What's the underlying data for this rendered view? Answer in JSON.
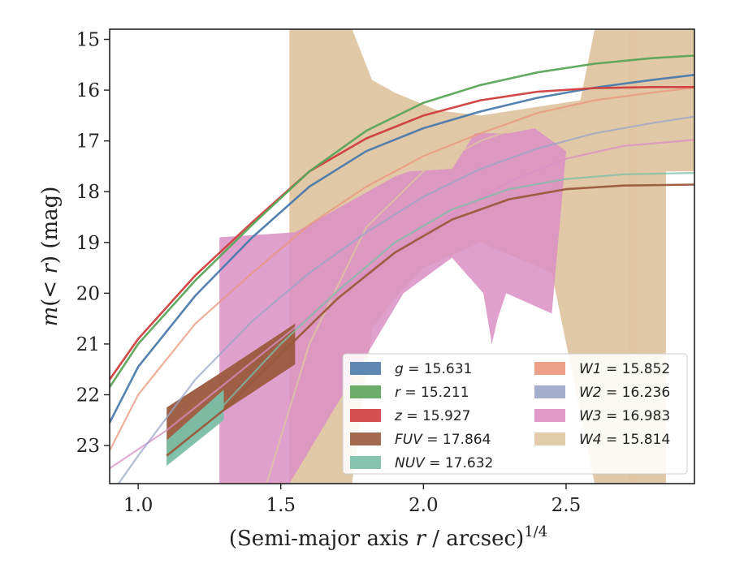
{
  "chart_data": {
    "type": "line",
    "xlabel": "(Semi-major axis r / arcsec)^1/4",
    "ylabel": "m(< r) (mag)",
    "xlim": [
      0.9,
      2.95
    ],
    "ylim": [
      23.75,
      14.8
    ],
    "y_inverted": true,
    "xticks": [
      1.0,
      1.5,
      2.0,
      2.5
    ],
    "xtick_labels": [
      "1.0",
      "1.5",
      "2.0",
      "2.5"
    ],
    "yticks": [
      15,
      16,
      17,
      18,
      19,
      20,
      21,
      22,
      23
    ],
    "ytick_labels": [
      "15",
      "16",
      "17",
      "18",
      "19",
      "20",
      "21",
      "22",
      "23"
    ],
    "legend_position": "lower-right",
    "legend_columns": 2,
    "series": [
      {
        "name": "g",
        "label_value": "15.631",
        "color": "#4c7bab",
        "x": [
          0.9,
          1.0,
          1.2,
          1.4,
          1.6,
          1.8,
          2.0,
          2.2,
          2.4,
          2.6,
          2.8,
          2.95
        ],
        "y": [
          22.55,
          21.45,
          20.05,
          18.9,
          17.9,
          17.2,
          16.75,
          16.42,
          16.15,
          15.95,
          15.8,
          15.7
        ],
        "band": 0.05
      },
      {
        "name": "r",
        "label_value": "15.211",
        "color": "#5ba55a",
        "x": [
          0.9,
          1.0,
          1.2,
          1.4,
          1.6,
          1.8,
          2.0,
          2.2,
          2.4,
          2.6,
          2.8,
          2.95
        ],
        "y": [
          21.85,
          21.0,
          19.75,
          18.65,
          17.6,
          16.8,
          16.25,
          15.9,
          15.65,
          15.48,
          15.37,
          15.32
        ],
        "band": 0.05
      },
      {
        "name": "z",
        "label_value": "15.927",
        "color": "#cf3e3e",
        "x": [
          0.9,
          1.0,
          1.2,
          1.4,
          1.6,
          1.8,
          2.0,
          2.2,
          2.4,
          2.6,
          2.8,
          2.95
        ],
        "y": [
          21.7,
          20.9,
          19.65,
          18.6,
          17.6,
          16.95,
          16.5,
          16.2,
          16.03,
          15.96,
          15.94,
          15.94
        ],
        "band": 0.05
      },
      {
        "name": "FUV",
        "label_value": "17.864",
        "color": "#9a5a3c",
        "x": [
          1.1,
          1.3,
          1.5,
          1.7,
          1.9,
          2.1,
          2.3,
          2.5,
          2.7,
          2.95
        ],
        "y": [
          23.2,
          22.3,
          21.2,
          20.1,
          19.2,
          18.55,
          18.15,
          17.95,
          17.88,
          17.86
        ],
        "band": 0.08
      },
      {
        "name": "NUV",
        "label_value": "17.632",
        "color": "#7bbfa8",
        "x": [
          1.1,
          1.3,
          1.5,
          1.7,
          1.9,
          2.1,
          2.3,
          2.5,
          2.7,
          2.95
        ],
        "y": [
          23.3,
          22.2,
          21.0,
          19.95,
          19.0,
          18.35,
          17.95,
          17.75,
          17.66,
          17.63
        ],
        "band": 0.08
      },
      {
        "name": "W1",
        "label_value": "15.852",
        "color": "#e9967a",
        "x": [
          0.9,
          1.0,
          1.2,
          1.4,
          1.6,
          1.8,
          2.0,
          2.2,
          2.4,
          2.6,
          2.8,
          2.95
        ],
        "y": [
          23.1,
          22.0,
          20.6,
          19.6,
          18.65,
          17.9,
          17.3,
          16.85,
          16.45,
          16.2,
          16.05,
          15.95
        ],
        "band": 0.05
      },
      {
        "name": "W2",
        "label_value": "16.236",
        "color": "#9aa5c7",
        "x": [
          0.9,
          1.0,
          1.2,
          1.4,
          1.6,
          1.8,
          2.0,
          2.2,
          2.4,
          2.6,
          2.8,
          2.95
        ],
        "y": [
          24.0,
          23.2,
          21.7,
          20.55,
          19.6,
          18.8,
          18.1,
          17.55,
          17.15,
          16.85,
          16.65,
          16.52
        ],
        "band": 0.05
      },
      {
        "name": "W3",
        "label_value": "16.983",
        "color": "#db8fc4",
        "x": [
          0.9,
          1.1,
          1.3,
          1.5,
          1.7,
          1.9,
          2.1,
          2.3,
          2.5,
          2.7,
          2.95
        ],
        "y": [
          23.45,
          22.7,
          21.8,
          20.9,
          20.0,
          19.2,
          18.45,
          17.8,
          17.35,
          17.1,
          16.98
        ],
        "band": 0.05
      },
      {
        "name": "W4",
        "label_value": "15.814",
        "color": "#dfc5a2",
        "x": [
          1.45,
          1.6,
          1.8,
          2.0,
          2.2,
          2.4,
          2.6,
          2.8,
          2.95
        ],
        "y": [
          23.75,
          21.0,
          18.7,
          17.6,
          17.0,
          16.6,
          16.2,
          15.9,
          15.8
        ],
        "band": 0.05
      }
    ],
    "bands": {
      "W3": {
        "x": [
          1.285,
          1.53,
          1.93,
          2.1,
          2.21,
          2.24,
          2.26,
          2.29,
          2.45,
          2.5,
          2.5,
          2.39,
          2.3,
          2.18,
          2.1,
          1.95,
          1.9,
          1.55,
          1.285
        ],
        "top": [],
        "poly_y": [
          23.75,
          23.75,
          20.0,
          19.3,
          20.0,
          21.0,
          20.5,
          20.0,
          20.4,
          17.2,
          17.2,
          16.75,
          16.85,
          16.85,
          17.55,
          17.6,
          17.7,
          18.8,
          18.9
        ]
      },
      "W4_main": {
        "x": [
          1.53,
          1.53,
          1.75,
          1.82,
          1.9,
          2.05,
          2.2,
          2.55,
          2.6,
          2.7,
          2.75,
          2.75,
          2.6,
          2.45,
          2.2,
          2.0,
          1.9,
          1.82,
          1.75,
          1.65
        ],
        "poly_y": [
          23.75,
          14.8,
          14.8,
          15.8,
          16.05,
          16.4,
          16.5,
          16.2,
          14.8,
          14.8,
          14.8,
          23.75,
          23.75,
          19.6,
          19.0,
          19.5,
          20.1,
          20.7,
          23.75,
          23.75
        ]
      },
      "W4_right": {
        "x": [
          2.72,
          2.72,
          2.95,
          2.95,
          2.85,
          2.85
        ],
        "poly_y": [
          23.75,
          14.8,
          14.8,
          17.6,
          17.6,
          23.75
        ]
      },
      "FUV_fill": {
        "x": [
          1.1,
          1.28,
          1.55,
          1.55,
          1.28,
          1.1
        ],
        "poly_y": [
          22.25,
          21.6,
          20.6,
          21.4,
          22.4,
          23.25
        ]
      },
      "NUV_fill": {
        "x": [
          1.1,
          1.3,
          1.3,
          1.1
        ],
        "poly_y": [
          22.9,
          21.9,
          22.5,
          23.4
        ]
      }
    }
  },
  "legend": {
    "col1": [
      {
        "key": "g",
        "text": "g = 15.631",
        "color": "#4c7bab"
      },
      {
        "key": "r",
        "text": "r = 15.211",
        "color": "#5ba55a"
      },
      {
        "key": "z",
        "text": "z = 15.927",
        "color": "#cf3e3e"
      },
      {
        "key": "FUV",
        "text": "FUV = 17.864",
        "color": "#9a5a3c"
      },
      {
        "key": "NUV",
        "text": "NUV = 17.632",
        "color": "#7bbfa8"
      }
    ],
    "col2": [
      {
        "key": "W1",
        "text": "W1 = 15.852",
        "color": "#e9967a"
      },
      {
        "key": "W2",
        "text": "W2 = 16.236",
        "color": "#9aa5c7"
      },
      {
        "key": "W3",
        "text": "W3 = 16.983",
        "color": "#db8fc4"
      },
      {
        "key": "W4",
        "text": "W4 = 15.814",
        "color": "#dfc5a2"
      }
    ]
  },
  "labels": {
    "xlabel_main": "(Semi-major axis ",
    "xlabel_var": "r",
    "xlabel_unit": " / arcsec)",
    "xlabel_exp": "1/4",
    "ylabel_m": "m",
    "ylabel_paren": "(< ",
    "ylabel_r": "r",
    "ylabel_unit": ") (mag)"
  }
}
